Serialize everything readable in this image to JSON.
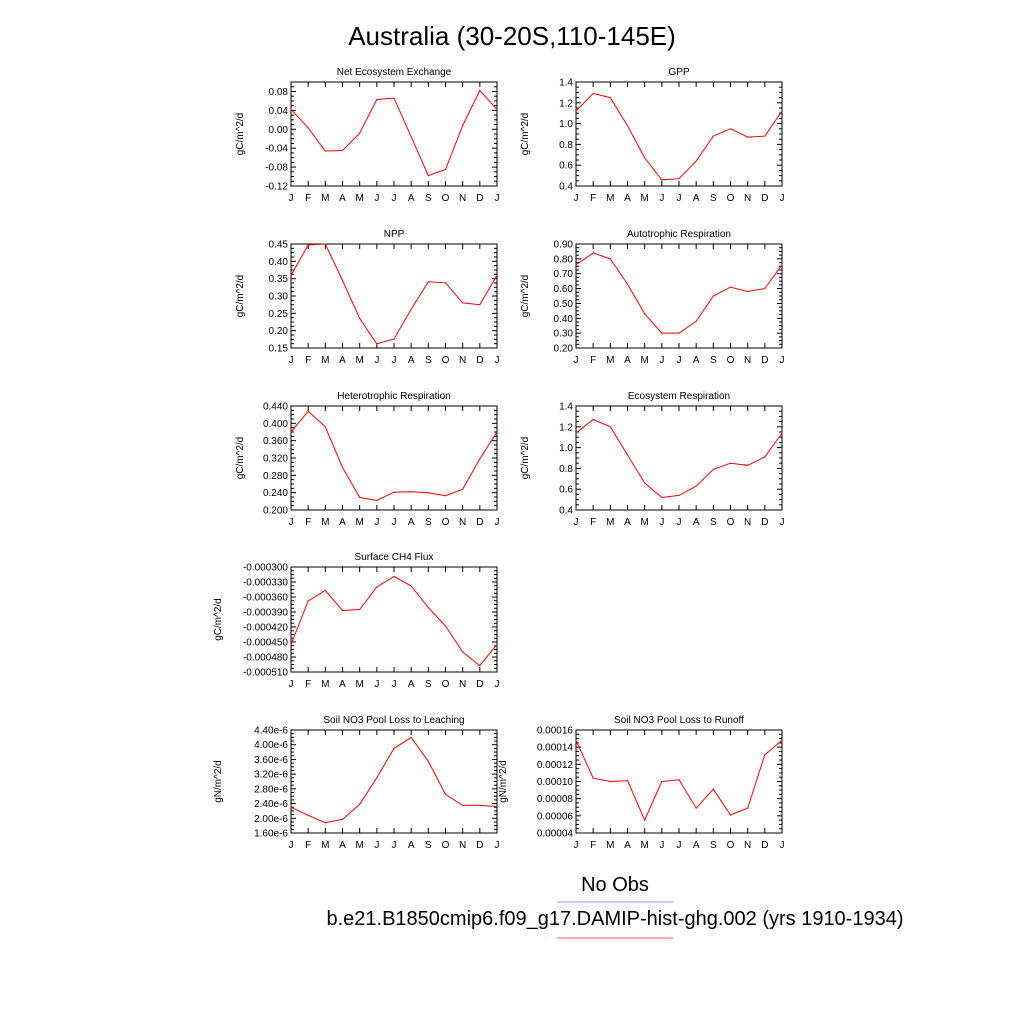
{
  "title": "Australia (30-20S,110-145E)",
  "legend": [
    {
      "label": "No Obs",
      "color": "#8a8aff"
    },
    {
      "label": "b.e21.B1850cmip6.f09_g17.DAMIP-hist-ghg.002 (yrs 1910-1934)",
      "color": "#ff6060"
    }
  ],
  "series_color": "#ff0000",
  "chart_data": [
    {
      "type": "line",
      "title": "Net Ecosystem Exchange",
      "ylabel": "gC/m^2/d",
      "x": [
        "J",
        "F",
        "M",
        "A",
        "M",
        "J",
        "J",
        "A",
        "S",
        "O",
        "N",
        "D",
        "J"
      ],
      "ylim": [
        -0.12,
        0.1
      ],
      "yticks": [
        "-0.12",
        "-0.08",
        "-0.04",
        "0.00",
        "0.04",
        "0.08"
      ],
      "values": [
        0.042,
        0.003,
        -0.046,
        -0.045,
        -0.008,
        0.063,
        0.066,
        -0.016,
        -0.098,
        -0.085,
        0.008,
        0.082,
        0.042
      ]
    },
    {
      "type": "line",
      "title": "GPP",
      "ylabel": "gC/m^2/d",
      "x": [
        "J",
        "F",
        "M",
        "A",
        "M",
        "J",
        "J",
        "A",
        "S",
        "O",
        "N",
        "D",
        "J"
      ],
      "ylim": [
        0.4,
        1.4
      ],
      "yticks": [
        "0.4",
        "0.6",
        "0.8",
        "1.0",
        "1.2",
        "1.4"
      ],
      "values": [
        1.12,
        1.29,
        1.25,
        0.98,
        0.67,
        0.46,
        0.47,
        0.64,
        0.88,
        0.95,
        0.87,
        0.88,
        1.12
      ]
    },
    {
      "type": "line",
      "title": "NPP",
      "ylabel": "gC/m^2/d",
      "x": [
        "J",
        "F",
        "M",
        "A",
        "M",
        "J",
        "J",
        "A",
        "S",
        "O",
        "N",
        "D",
        "J"
      ],
      "ylim": [
        0.15,
        0.45
      ],
      "yticks": [
        "0.15",
        "0.20",
        "0.25",
        "0.30",
        "0.35",
        "0.40",
        "0.45"
      ],
      "values": [
        0.36,
        0.447,
        0.45,
        0.345,
        0.235,
        0.162,
        0.176,
        0.262,
        0.341,
        0.338,
        0.28,
        0.275,
        0.36
      ]
    },
    {
      "type": "line",
      "title": "Autotrophic Respiration",
      "ylabel": "gC/m^2/d",
      "x": [
        "J",
        "F",
        "M",
        "A",
        "M",
        "J",
        "J",
        "A",
        "S",
        "O",
        "N",
        "D",
        "J"
      ],
      "ylim": [
        0.2,
        0.9
      ],
      "yticks": [
        "0.20",
        "0.30",
        "0.40",
        "0.50",
        "0.60",
        "0.70",
        "0.80",
        "0.90"
      ],
      "values": [
        0.76,
        0.84,
        0.8,
        0.63,
        0.43,
        0.3,
        0.3,
        0.38,
        0.55,
        0.61,
        0.58,
        0.6,
        0.76
      ]
    },
    {
      "type": "line",
      "title": "Heterotrophic Respiration",
      "ylabel": "gC/m^2/d",
      "x": [
        "J",
        "F",
        "M",
        "A",
        "M",
        "J",
        "J",
        "A",
        "S",
        "O",
        "N",
        "D",
        "J"
      ],
      "ylim": [
        0.2,
        0.44
      ],
      "yticks": [
        "0.200",
        "0.240",
        "0.280",
        "0.320",
        "0.360",
        "0.400",
        "0.440"
      ],
      "values": [
        0.38,
        0.428,
        0.392,
        0.298,
        0.229,
        0.222,
        0.241,
        0.242,
        0.24,
        0.233,
        0.248,
        0.318,
        0.38
      ]
    },
    {
      "type": "line",
      "title": "Ecosystem Respiration",
      "ylabel": "gC/m^2/d",
      "x": [
        "J",
        "F",
        "M",
        "A",
        "M",
        "J",
        "J",
        "A",
        "S",
        "O",
        "N",
        "D",
        "J"
      ],
      "ylim": [
        0.4,
        1.4
      ],
      "yticks": [
        "0.4",
        "0.6",
        "0.8",
        "1.0",
        "1.2",
        "1.4"
      ],
      "values": [
        1.14,
        1.27,
        1.2,
        0.93,
        0.66,
        0.52,
        0.54,
        0.63,
        0.79,
        0.85,
        0.83,
        0.91,
        1.14
      ]
    },
    {
      "type": "line",
      "title": "Surface CH4 Flux",
      "ylabel": "gC/m^2/d",
      "x": [
        "J",
        "F",
        "M",
        "A",
        "M",
        "J",
        "J",
        "A",
        "S",
        "O",
        "N",
        "D",
        "J"
      ],
      "ylim": [
        -0.00051,
        -0.0003
      ],
      "yticks": [
        "-0.000510",
        "-0.000480",
        "-0.000450",
        "-0.000420",
        "-0.000390",
        "-0.000360",
        "-0.000330",
        "-0.000300"
      ],
      "values": [
        -0.000455,
        -0.000368,
        -0.000347,
        -0.000387,
        -0.000385,
        -0.00034,
        -0.000319,
        -0.000338,
        -0.000381,
        -0.000418,
        -0.00047,
        -0.000497,
        -0.000455
      ]
    },
    {
      "type": "line",
      "title": "Soil NO3 Pool Loss to Leaching",
      "ylabel": "gN/m^2/d",
      "x": [
        "J",
        "F",
        "M",
        "A",
        "M",
        "J",
        "J",
        "A",
        "S",
        "O",
        "N",
        "D",
        "J"
      ],
      "ylim": [
        1.6e-06,
        4.4e-06
      ],
      "yticks": [
        "1.60e-6",
        "2.00e-6",
        "2.40e-6",
        "2.80e-6",
        "3.20e-6",
        "3.60e-6",
        "4.00e-6",
        "4.40e-6"
      ],
      "values": [
        2.3e-06,
        2.08e-06,
        1.88e-06,
        1.97e-06,
        2.38e-06,
        3.1e-06,
        3.9e-06,
        4.2e-06,
        3.55e-06,
        2.65e-06,
        2.35e-06,
        2.35e-06,
        2.32e-06
      ]
    },
    {
      "type": "line",
      "title": "Soil NO3 Pool Loss to Runoff",
      "ylabel": "gN/m^2/d",
      "x": [
        "J",
        "F",
        "M",
        "A",
        "M",
        "J",
        "J",
        "A",
        "S",
        "O",
        "N",
        "D",
        "J"
      ],
      "ylim": [
        4e-05,
        0.00016
      ],
      "yticks": [
        "0.00004",
        "0.00006",
        "0.00008",
        "0.00010",
        "0.00012",
        "0.00014",
        "0.00016"
      ],
      "values": [
        0.000148,
        0.000104,
        0.0001,
        0.000101,
        5.5e-05,
        0.0001,
        0.000102,
        6.9e-05,
        9.1e-05,
        6.1e-05,
        6.9e-05,
        0.000131,
        0.000148
      ]
    }
  ]
}
